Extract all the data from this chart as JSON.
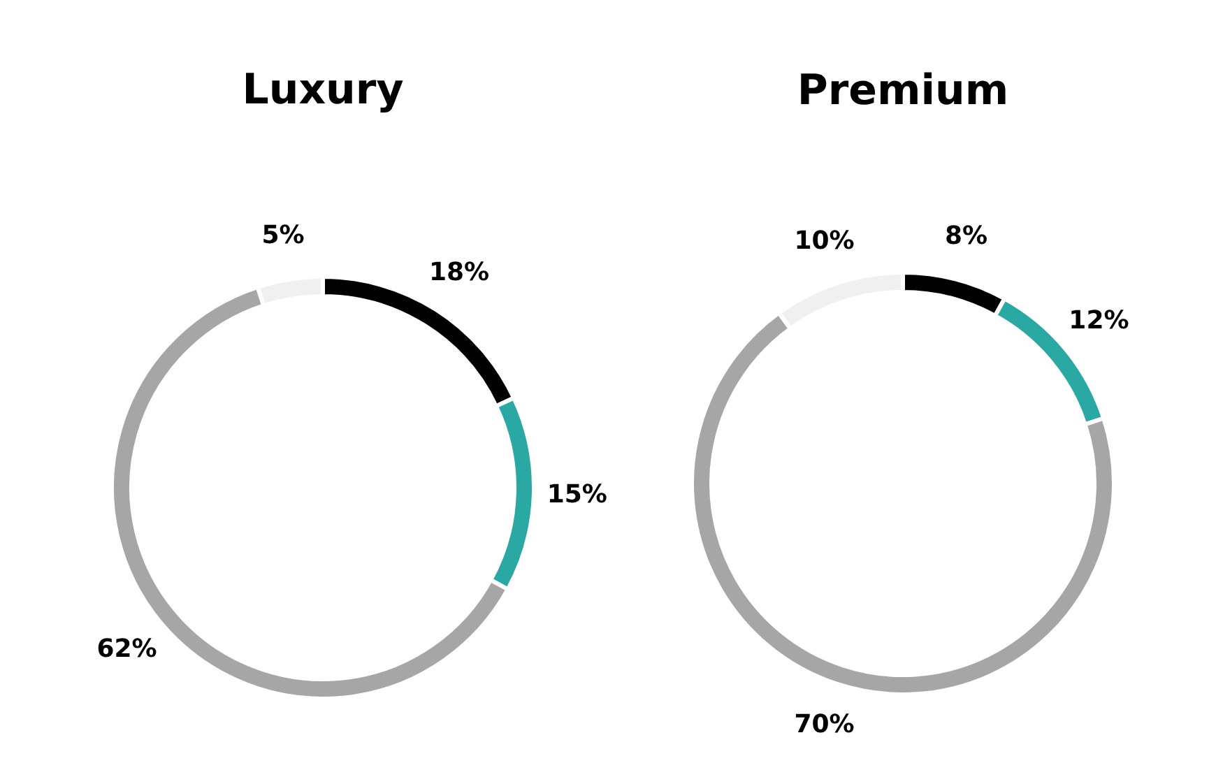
{
  "chart_data": [
    {
      "type": "donut",
      "title": "Luxury",
      "categories": [
        null,
        null,
        null,
        null
      ],
      "values": [
        18,
        15,
        62,
        5
      ],
      "colors": [
        "#000000",
        "#2aa8a4",
        "#a6a6a6",
        "#f0f0f0"
      ],
      "value_labels": [
        "18%",
        "15%",
        "62%",
        "5%"
      ]
    },
    {
      "type": "donut",
      "title": "Premium",
      "categories": [
        null,
        null,
        null,
        null
      ],
      "values": [
        8,
        12,
        70,
        10
      ],
      "colors": [
        "#000000",
        "#2aa8a4",
        "#a6a6a6",
        "#f0f0f0"
      ],
      "value_labels": [
        "8%",
        "12%",
        "70%",
        "10%"
      ]
    }
  ]
}
